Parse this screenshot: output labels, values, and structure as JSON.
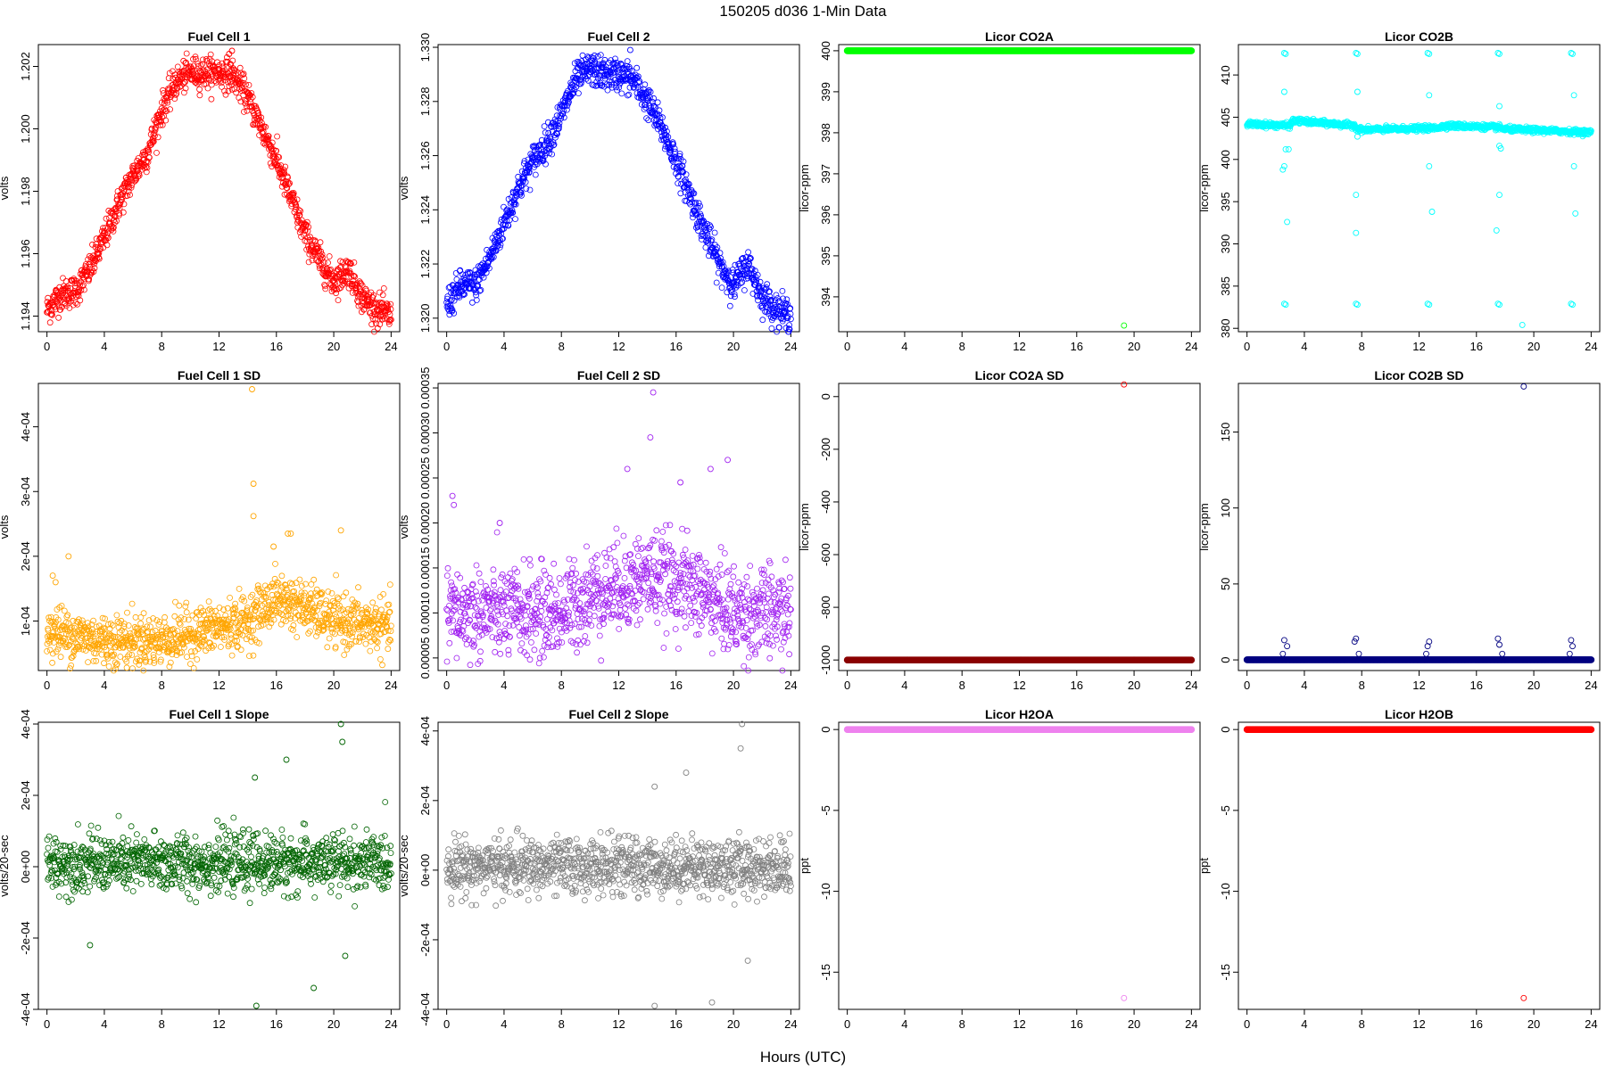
{
  "figure": {
    "title": "150205    d036    1-Min Data",
    "xlabel": "Hours (UTC)"
  },
  "chart_data": [
    {
      "type": "scatter",
      "title": "Fuel Cell 1",
      "ylabel": "volts",
      "color": "#ff0000",
      "xlim": [
        -0.6,
        24.6
      ],
      "ylim": [
        1.1935,
        1.2027
      ],
      "xticks": [
        0,
        4,
        8,
        12,
        16,
        20,
        24
      ],
      "yticks": [
        1.194,
        1.196,
        1.198,
        1.2,
        1.202
      ],
      "ytick_labels": [
        "1.194",
        "1.196",
        "1.198",
        "1.200",
        "1.202"
      ],
      "trend": [
        [
          0,
          1.1942
        ],
        [
          1,
          1.1947
        ],
        [
          2,
          1.1948
        ],
        [
          3,
          1.1955
        ],
        [
          4,
          1.1965
        ],
        [
          5,
          1.1976
        ],
        [
          6,
          1.1985
        ],
        [
          7,
          1.1992
        ],
        [
          8,
          1.2006
        ],
        [
          9,
          1.2015
        ],
        [
          10,
          1.2018
        ],
        [
          11,
          1.2018
        ],
        [
          12,
          1.2018
        ],
        [
          13,
          1.2017
        ],
        [
          14,
          1.201
        ],
        [
          15,
          1.2
        ],
        [
          16,
          1.199
        ],
        [
          17,
          1.1978
        ],
        [
          18,
          1.1966
        ],
        [
          19,
          1.1958
        ],
        [
          20,
          1.1951
        ],
        [
          21,
          1.1955
        ],
        [
          22,
          1.1946
        ],
        [
          23,
          1.1942
        ],
        [
          24,
          1.194
        ]
      ],
      "noise": 0.00025,
      "outliers": [
        [
          12.9,
          1.2025
        ],
        [
          12.7,
          1.2024
        ]
      ]
    },
    {
      "type": "scatter",
      "title": "Fuel Cell 2",
      "ylabel": "volts",
      "color": "#0000ff",
      "xlim": [
        -0.6,
        24.6
      ],
      "ylim": [
        1.3195,
        1.3301
      ],
      "xticks": [
        0,
        4,
        8,
        12,
        16,
        20,
        24
      ],
      "yticks": [
        1.32,
        1.322,
        1.324,
        1.326,
        1.328,
        1.33
      ],
      "ytick_labels": [
        "1.320",
        "1.322",
        "1.324",
        "1.326",
        "1.328",
        "1.330"
      ],
      "trend": [
        [
          0,
          1.3205
        ],
        [
          1,
          1.3212
        ],
        [
          2,
          1.3212
        ],
        [
          3,
          1.3222
        ],
        [
          4,
          1.3235
        ],
        [
          5,
          1.3248
        ],
        [
          6,
          1.3258
        ],
        [
          7,
          1.3265
        ],
        [
          8,
          1.3275
        ],
        [
          9,
          1.3288
        ],
        [
          10,
          1.3292
        ],
        [
          11,
          1.329
        ],
        [
          12,
          1.329
        ],
        [
          13,
          1.3288
        ],
        [
          14,
          1.328
        ],
        [
          15,
          1.327
        ],
        [
          16,
          1.3258
        ],
        [
          17,
          1.3245
        ],
        [
          18,
          1.3232
        ],
        [
          19,
          1.322
        ],
        [
          20,
          1.3212
        ],
        [
          21,
          1.322
        ],
        [
          22,
          1.3208
        ],
        [
          23,
          1.3203
        ],
        [
          24,
          1.3201
        ]
      ],
      "noise": 0.0003,
      "outliers": [
        [
          12.8,
          1.3299
        ]
      ]
    },
    {
      "type": "scatter",
      "title": "Licor CO2A",
      "ylabel": "licor-ppm",
      "color": "#00ff00",
      "xlim": [
        -0.6,
        24.6
      ],
      "ylim": [
        393.15,
        400.15
      ],
      "xticks": [
        0,
        4,
        8,
        12,
        16,
        20,
        24
      ],
      "yticks": [
        394,
        395,
        396,
        397,
        398,
        399,
        400
      ],
      "ytick_labels": [
        "394",
        "395",
        "396",
        "397",
        "398",
        "399",
        "400"
      ],
      "trend": [
        [
          0,
          400
        ],
        [
          24,
          400
        ]
      ],
      "noise": 0,
      "outliers": [
        [
          19.3,
          393.3
        ]
      ]
    },
    {
      "type": "scatter",
      "title": "Licor CO2B",
      "ylabel": "licor-ppm",
      "color": "#00ffff",
      "xlim": [
        -0.6,
        24.6
      ],
      "ylim": [
        379.6,
        413.6
      ],
      "xticks": [
        0,
        4,
        8,
        12,
        16,
        20,
        24
      ],
      "yticks": [
        380,
        385,
        390,
        395,
        400,
        405,
        410
      ],
      "ytick_labels": [
        "380",
        "385",
        "390",
        "395",
        "400",
        "405",
        "410"
      ],
      "trend": [
        [
          0,
          404.2
        ],
        [
          3,
          404.0
        ],
        [
          3.2,
          404.6
        ],
        [
          7.5,
          404.0
        ],
        [
          7.8,
          403.5
        ],
        [
          13,
          403.7
        ],
        [
          14,
          404.0
        ],
        [
          17.5,
          403.8
        ],
        [
          18,
          403.6
        ],
        [
          24,
          403.2
        ]
      ],
      "noise": 0.15,
      "outliers": [
        [
          2.6,
          412.6
        ],
        [
          2.7,
          412.5
        ],
        [
          7.6,
          412.6
        ],
        [
          7.7,
          412.5
        ],
        [
          12.6,
          412.6
        ],
        [
          12.7,
          412.5
        ],
        [
          17.5,
          412.6
        ],
        [
          17.6,
          412.5
        ],
        [
          22.6,
          412.6
        ],
        [
          22.7,
          412.5
        ],
        [
          2.6,
          408
        ],
        [
          7.7,
          408
        ],
        [
          12.7,
          407.6
        ],
        [
          17.6,
          406.3
        ],
        [
          22.8,
          407.6
        ],
        [
          2.7,
          401.2
        ],
        [
          2.9,
          401.2
        ],
        [
          7.7,
          402.7
        ],
        [
          17.6,
          401.6
        ],
        [
          17.7,
          401.3
        ],
        [
          2.6,
          399.2
        ],
        [
          2.5,
          398.8
        ],
        [
          12.7,
          399.2
        ],
        [
          22.8,
          399.2
        ],
        [
          7.6,
          395.8
        ],
        [
          17.6,
          395.8
        ],
        [
          2.8,
          392.6
        ],
        [
          7.6,
          391.3
        ],
        [
          12.9,
          393.8
        ],
        [
          17.4,
          391.6
        ],
        [
          22.9,
          393.6
        ],
        [
          2.6,
          382.9
        ],
        [
          2.7,
          382.8
        ],
        [
          7.6,
          382.9
        ],
        [
          7.7,
          382.8
        ],
        [
          12.6,
          382.9
        ],
        [
          12.7,
          382.8
        ],
        [
          17.5,
          382.9
        ],
        [
          17.6,
          382.8
        ],
        [
          22.6,
          382.9
        ],
        [
          22.7,
          382.8
        ],
        [
          19.2,
          380.4
        ]
      ]
    },
    {
      "type": "scatter",
      "title": "Fuel Cell 1 SD",
      "ylabel": "volts",
      "color": "#ffa500",
      "xlim": [
        -0.6,
        24.6
      ],
      "ylim": [
        2.35e-05,
        0.000467
      ],
      "xticks": [
        0,
        4,
        8,
        12,
        16,
        20,
        24
      ],
      "yticks": [
        0.0001,
        0.0002,
        0.0003,
        0.0004
      ],
      "ytick_labels": [
        "1e-04",
        "2e-04",
        "3e-04",
        "4e-04"
      ],
      "trend": [
        [
          0,
          8.5e-05
        ],
        [
          4,
          7e-05
        ],
        [
          8,
          7e-05
        ],
        [
          12,
          9e-05
        ],
        [
          14,
          0.0001
        ],
        [
          16,
          0.000135
        ],
        [
          18,
          0.00012
        ],
        [
          20,
          0.0001
        ],
        [
          24,
          9e-05
        ]
      ],
      "noise": 2e-05,
      "outliers": [
        [
          14.3,
          0.000458
        ],
        [
          14.4,
          0.000312
        ],
        [
          14.4,
          0.000262
        ],
        [
          0.6,
          0.00016
        ],
        [
          0.4,
          0.00017
        ],
        [
          1.5,
          0.0002
        ],
        [
          17,
          0.000235
        ],
        [
          20.5,
          0.00024
        ],
        [
          16.8,
          0.000235
        ],
        [
          15.8,
          0.000215
        ]
      ]
    },
    {
      "type": "scatter",
      "title": "Fuel Cell 2 SD",
      "ylabel": "volts",
      "color": "#a020f0",
      "xlim": [
        -0.6,
        24.6
      ],
      "ylim": [
        3.6e-05,
        0.000355
      ],
      "xticks": [
        0,
        4,
        8,
        12,
        16,
        20,
        24
      ],
      "yticks": [
        5e-05,
        0.0001,
        0.00015,
        0.0002,
        0.00025,
        0.0003,
        0.00035
      ],
      "ytick_labels": [
        "0.00005",
        "0.00010",
        "0.00015",
        "0.00020",
        "0.00025",
        "0.00030",
        "0.00035"
      ],
      "trend": [
        [
          0,
          0.0001
        ],
        [
          4,
          0.0001
        ],
        [
          8,
          0.0001
        ],
        [
          10,
          0.00012
        ],
        [
          12,
          0.00013
        ],
        [
          14,
          0.00014
        ],
        [
          16,
          0.000135
        ],
        [
          18,
          0.00012
        ],
        [
          20,
          0.0001
        ],
        [
          24,
          0.0001
        ]
      ],
      "noise": 2.5e-05,
      "outliers": [
        [
          14.4,
          0.000345
        ],
        [
          14.2,
          0.000295
        ],
        [
          12.6,
          0.00026
        ],
        [
          16.3,
          0.000245
        ],
        [
          18.4,
          0.00026
        ],
        [
          19.6,
          0.00027
        ],
        [
          0.4,
          0.00023
        ],
        [
          0.5,
          0.00022
        ],
        [
          3.7,
          0.0002
        ]
      ]
    },
    {
      "type": "scatter",
      "title": "Licor CO2A SD",
      "ylabel": "licor-ppm",
      "color": "#8b0000",
      "xlim": [
        -0.6,
        24.6
      ],
      "ylim": [
        -1040,
        50
      ],
      "xticks": [
        0,
        4,
        8,
        12,
        16,
        20,
        24
      ],
      "yticks": [
        -1000,
        -800,
        -600,
        -400,
        -200,
        0
      ],
      "ytick_labels": [
        "-1000",
        "-800",
        "-600",
        "-400",
        "-200",
        "0"
      ],
      "trend": [
        [
          0,
          -999.9
        ],
        [
          24,
          -999.9
        ]
      ],
      "noise": 0,
      "outliers": [
        [
          19.3,
          46
        ]
      ],
      "outlier_color": "#ff0000"
    },
    {
      "type": "scatter",
      "title": "Licor CO2B SD",
      "ylabel": "licor-ppm",
      "color": "#000080",
      "xlim": [
        -0.6,
        24.6
      ],
      "ylim": [
        -7,
        182
      ],
      "xticks": [
        0,
        4,
        8,
        12,
        16,
        20,
        24
      ],
      "yticks": [
        0,
        50,
        100,
        150
      ],
      "ytick_labels": [
        "0",
        "50",
        "100",
        "150"
      ],
      "trend": [
        [
          0,
          0.1
        ],
        [
          24,
          0.1
        ]
      ],
      "noise": 0,
      "outliers": [
        [
          19.3,
          180
        ],
        [
          2.6,
          13
        ],
        [
          2.8,
          9
        ],
        [
          2.5,
          4
        ],
        [
          7.5,
          12
        ],
        [
          7.6,
          14
        ],
        [
          7.8,
          4
        ],
        [
          12.6,
          9
        ],
        [
          12.7,
          12
        ],
        [
          12.5,
          4
        ],
        [
          17.5,
          14
        ],
        [
          17.6,
          10
        ],
        [
          17.8,
          4
        ],
        [
          22.6,
          13
        ],
        [
          22.7,
          9
        ],
        [
          22.5,
          4
        ]
      ]
    },
    {
      "type": "scatter",
      "title": "Fuel Cell 1 Slope",
      "ylabel": "volts/20-sec",
      "color": "#006400",
      "xlim": [
        -0.6,
        24.6
      ],
      "ylim": [
        -0.0004,
        0.000405
      ],
      "xticks": [
        0,
        4,
        8,
        12,
        16,
        20,
        24
      ],
      "yticks": [
        -0.0004,
        -0.0002,
        0,
        0.0002,
        0.0004
      ],
      "ytick_labels": [
        "-4e-04",
        "-2e-04",
        "0e+00",
        "2e-04",
        "4e-04"
      ],
      "trend": [
        [
          0,
          1e-05
        ],
        [
          24,
          1e-05
        ]
      ],
      "noise": 4e-05,
      "outliers": [
        [
          20.5,
          0.0004
        ],
        [
          20.6,
          0.00035
        ],
        [
          14.5,
          0.00025
        ],
        [
          16.7,
          0.0003
        ],
        [
          14.6,
          -0.00039
        ],
        [
          18.6,
          -0.00034
        ],
        [
          3,
          -0.00022
        ],
        [
          20.8,
          -0.00025
        ]
      ]
    },
    {
      "type": "scatter",
      "title": "Fuel Cell 2 Slope",
      "ylabel": "volts/20-sec",
      "color": "#808080",
      "xlim": [
        -0.6,
        24.6
      ],
      "ylim": [
        -0.0004,
        0.000425
      ],
      "xticks": [
        0,
        4,
        8,
        12,
        16,
        20,
        24
      ],
      "yticks": [
        -0.0004,
        -0.0002,
        0,
        0.0002,
        0.0004
      ],
      "ytick_labels": [
        "-4e-04",
        "-2e-04",
        "0e+00",
        "2e-04",
        "4e-04"
      ],
      "trend": [
        [
          0,
          1e-05
        ],
        [
          24,
          1e-05
        ]
      ],
      "noise": 4e-05,
      "outliers": [
        [
          20.6,
          0.00042
        ],
        [
          20.5,
          0.00035
        ],
        [
          14.5,
          -0.00039
        ],
        [
          18.5,
          -0.00038
        ],
        [
          21,
          -0.00026
        ],
        [
          16.7,
          0.00028
        ],
        [
          14.5,
          0.00024
        ]
      ]
    },
    {
      "type": "scatter",
      "title": "Licor H2OA",
      "ylabel": "ppt",
      "color": "#ee82ee",
      "xlim": [
        -0.6,
        24.6
      ],
      "ylim": [
        -17.3,
        0.45
      ],
      "xticks": [
        0,
        4,
        8,
        12,
        16,
        20,
        24
      ],
      "yticks": [
        -15,
        -10,
        -5,
        0
      ],
      "ytick_labels": [
        "-15",
        "-10",
        "-5",
        "0"
      ],
      "trend": [
        [
          0,
          0
        ],
        [
          24,
          0
        ]
      ],
      "noise": 0,
      "outliers": [
        [
          19.3,
          -16.6
        ]
      ]
    },
    {
      "type": "scatter",
      "title": "Licor H2OB",
      "ylabel": "ppt",
      "color": "#ff0000",
      "xlim": [
        -0.6,
        24.6
      ],
      "ylim": [
        -17.3,
        0.45
      ],
      "xticks": [
        0,
        4,
        8,
        12,
        16,
        20,
        24
      ],
      "yticks": [
        -15,
        -10,
        -5,
        0
      ],
      "ytick_labels": [
        "-15",
        "-10",
        "-5",
        "0"
      ],
      "trend": [
        [
          0,
          0
        ],
        [
          24,
          0
        ]
      ],
      "noise": 0,
      "outliers": [
        [
          19.3,
          -16.6
        ]
      ]
    }
  ]
}
